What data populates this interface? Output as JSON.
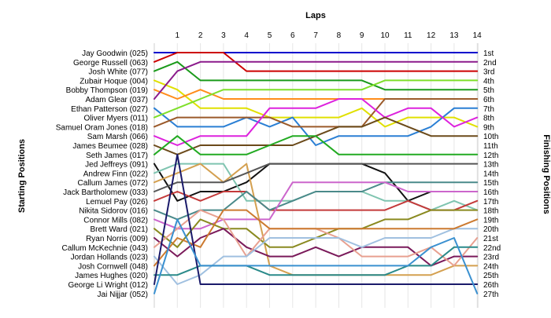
{
  "chart_data": {
    "type": "line",
    "title": "Laps",
    "ylabel_left": "Starting Positions",
    "ylabel_right": "Finishing Positions",
    "laps": [
      1,
      2,
      3,
      4,
      5,
      6,
      7,
      8,
      9,
      10,
      11,
      12,
      13,
      14
    ],
    "drivers": [
      "Jay Goodwin (025)",
      "George Russell (063)",
      "Josh White (077)",
      "Zubair Hoque (004)",
      "Bobby Thompson (019)",
      "Adam Glear (037)",
      "Ethan Patterson (027)",
      "Oliver Myers (011)",
      "Samuel Oram Jones (018)",
      "Sam Marsh (066)",
      "James Beumee (028)",
      "Seth James (017)",
      "Jed Jeffreys (091)",
      "Andrew Finn (022)",
      "Callum James (072)",
      "Jack Bartholomew (033)",
      "Lemuel Pay (026)",
      "Nikita Sidorov (016)",
      "Connor Mills (082)",
      "Brett Ward (021)",
      "Ryan Norris (009)",
      "Callum McKechnie (043)",
      "Jordan Hollands (023)",
      "Josh Cornwell (048)",
      "James Hughes (020)",
      "George Li Wright (012)",
      "Jai Nijjar (052)"
    ],
    "finishing_positions": [
      "1st",
      "2nd",
      "3rd",
      "4th",
      "5th",
      "6th",
      "7th",
      "8th",
      "9th",
      "10th",
      "11th",
      "12th",
      "13th",
      "14th",
      "15th",
      "16th",
      "17th",
      "18th",
      "19th",
      "20th",
      "21st",
      "22nd",
      "23rd",
      "24th",
      "25th",
      "26th",
      "27th"
    ],
    "series": [
      {
        "color": "#0000cc",
        "positions": [
          1,
          1,
          1,
          1,
          1,
          1,
          1,
          1,
          1,
          1,
          1,
          1,
          1,
          1,
          1
        ]
      },
      {
        "color": "#cc0000",
        "positions": [
          2,
          1,
          1,
          1,
          3,
          3,
          3,
          3,
          3,
          3,
          3,
          3,
          3,
          3,
          3
        ]
      },
      {
        "color": "#1a9a1a",
        "positions": [
          3,
          2,
          4,
          4,
          4,
          4,
          4,
          4,
          4,
          4,
          5,
          5,
          5,
          5,
          5
        ]
      },
      {
        "color": "#e0e000",
        "positions": [
          4,
          5,
          7,
          7,
          7,
          8,
          8,
          8,
          8,
          7,
          9,
          8,
          8,
          8,
          9
        ]
      },
      {
        "color": "#ff8c1a",
        "positions": [
          5,
          6,
          5,
          6,
          6,
          6,
          6,
          6,
          6,
          6,
          6,
          6,
          6,
          6,
          6
        ]
      },
      {
        "color": "#8b1a8b",
        "positions": [
          6,
          3,
          2,
          2,
          2,
          2,
          2,
          2,
          2,
          2,
          2,
          2,
          2,
          2,
          2
        ]
      },
      {
        "color": "#2a7fd4",
        "positions": [
          7,
          9,
          9,
          9,
          8,
          9,
          8,
          11,
          10,
          10,
          10,
          10,
          9,
          7,
          7
        ]
      },
      {
        "color": "#7fdf2a",
        "positions": [
          8,
          7,
          6,
          5,
          5,
          5,
          5,
          5,
          5,
          5,
          4,
          4,
          4,
          4,
          4
        ]
      },
      {
        "color": "#9b5a2a",
        "positions": [
          9,
          8,
          8,
          8,
          8,
          8,
          9,
          9,
          9,
          9,
          6,
          6,
          6,
          6,
          6
        ]
      },
      {
        "color": "#dd22dd",
        "positions": [
          10,
          11,
          10,
          10,
          10,
          7,
          7,
          7,
          6,
          6,
          8,
          7,
          7,
          9,
          8
        ]
      },
      {
        "color": "#6b4a1a",
        "positions": [
          11,
          12,
          11,
          11,
          11,
          11,
          11,
          10,
          9,
          9,
          8,
          9,
          10,
          10,
          10
        ]
      },
      {
        "color": "#22aa22",
        "positions": [
          12,
          10,
          12,
          12,
          12,
          11,
          10,
          10,
          12,
          12,
          12,
          12,
          12,
          12,
          12
        ]
      },
      {
        "color": "#111111",
        "positions": [
          13,
          17,
          16,
          16,
          15,
          13,
          13,
          13,
          13,
          13,
          14,
          17,
          16,
          16,
          16
        ]
      },
      {
        "color": "#7fc4b0",
        "positions": [
          14,
          13,
          13,
          13,
          17,
          17,
          17,
          16,
          16,
          16,
          17,
          17,
          18,
          17,
          18
        ]
      },
      {
        "color": "#d4a050",
        "positions": [
          15,
          14,
          13,
          15,
          13,
          24,
          25,
          25,
          25,
          25,
          25,
          25,
          25,
          24,
          24
        ]
      },
      {
        "color": "#555555",
        "positions": [
          16,
          15,
          15,
          15,
          14,
          13,
          13,
          13,
          13,
          13,
          13,
          13,
          13,
          13,
          13
        ]
      },
      {
        "color": "#c43a3a",
        "positions": [
          17,
          16,
          17,
          16,
          16,
          18,
          18,
          18,
          18,
          18,
          18,
          17,
          18,
          18,
          17
        ]
      },
      {
        "color": "#4a8a8a",
        "positions": [
          18,
          19,
          18,
          18,
          16,
          18,
          17,
          16,
          16,
          16,
          15,
          15,
          15,
          15,
          15
        ]
      },
      {
        "color": "#cc66cc",
        "positions": [
          19,
          20,
          20,
          19,
          19,
          19,
          15,
          15,
          15,
          15,
          15,
          16,
          16,
          16,
          16
        ]
      },
      {
        "color": "#8a8a20",
        "positions": [
          20,
          22,
          19,
          20,
          20,
          22,
          22,
          21,
          20,
          20,
          19,
          19,
          18,
          18,
          18
        ]
      },
      {
        "color": "#7a1a5a",
        "positions": [
          21,
          23,
          21,
          20,
          22,
          23,
          23,
          22,
          23,
          22,
          22,
          22,
          24,
          23,
          23
        ]
      },
      {
        "color": "#e8a090",
        "positions": [
          22,
          20,
          18,
          19,
          23,
          20,
          20,
          20,
          21,
          23,
          23,
          23,
          22,
          24,
          21
        ]
      },
      {
        "color": "#a0c0e0",
        "positions": [
          23,
          26,
          25,
          23,
          23,
          21,
          21,
          21,
          21,
          22,
          21,
          21,
          21,
          20,
          20
        ]
      },
      {
        "color": "#cc7a30",
        "positions": [
          24,
          21,
          22,
          18,
          18,
          20,
          20,
          20,
          20,
          20,
          20,
          20,
          20,
          20,
          19
        ]
      },
      {
        "color": "#2a8a8a",
        "positions": [
          25,
          25,
          24,
          24,
          24,
          25,
          25,
          25,
          25,
          25,
          25,
          24,
          24,
          22,
          22
        ]
      },
      {
        "color": "#1a1a6a",
        "positions": [
          26,
          12,
          26,
          26,
          26,
          26,
          26,
          26,
          26,
          26,
          26,
          26,
          26,
          26,
          26
        ]
      },
      {
        "color": "#3a90d0",
        "positions": [
          27,
          19,
          24,
          24,
          24,
          24,
          24,
          24,
          24,
          24,
          24,
          24,
          22,
          21,
          27
        ]
      }
    ]
  }
}
